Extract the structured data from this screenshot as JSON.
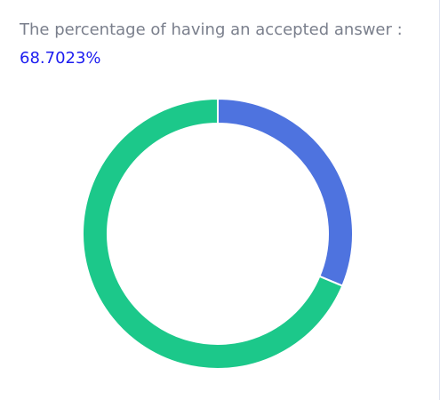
{
  "stat": {
    "label": "The percentage of having an accepted answer :",
    "value_text": "68.7023%"
  },
  "chart_data": {
    "type": "pie",
    "donut": true,
    "slices": [
      {
        "value": 31.2977,
        "color": "#4e73df"
      },
      {
        "value": 68.7023,
        "color": "#1cc88a"
      }
    ]
  }
}
